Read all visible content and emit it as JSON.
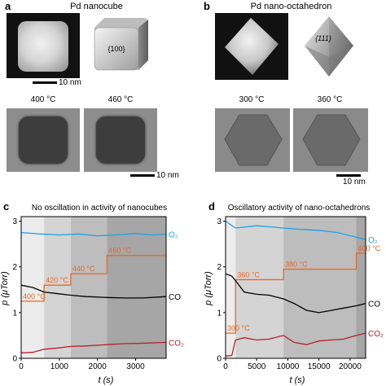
{
  "panel_a": {
    "letter": "a",
    "title": "Pd nanocube",
    "facet_label": "{100}",
    "scale_top": "10 nm",
    "temp1": "400 °C",
    "temp2": "460 °C",
    "scale_bottom": "10 nm"
  },
  "panel_b": {
    "letter": "b",
    "title": "Pd nano-octahedron",
    "facet_label": "{111}",
    "temp1": "300 °C",
    "temp2": "360 °C",
    "scale_bottom": "10 nm"
  },
  "chart_data": [
    {
      "type": "line",
      "panel": "c",
      "title": "No oscillation in activity of nanocubes",
      "xlabel": "t (s)",
      "ylabel": "p (μTorr)",
      "xlim": [
        0,
        3800
      ],
      "ylim": [
        0,
        3.1
      ],
      "xticks": [
        0,
        1000,
        2000,
        3000
      ],
      "yticks": [
        0,
        1,
        2,
        3
      ],
      "shaded_regions": [
        {
          "x": [
            0,
            600
          ],
          "shade": "#ececec"
        },
        {
          "x": [
            600,
            1300
          ],
          "shade": "#d4d4d4"
        },
        {
          "x": [
            1300,
            2250
          ],
          "shade": "#bdbdbd"
        },
        {
          "x": [
            2250,
            3800
          ],
          "shade": "#a6a6a6"
        }
      ],
      "temperature_steps": [
        {
          "label": "400 °C",
          "x": [
            0,
            600
          ],
          "y": 1.25
        },
        {
          "label": "420 °C",
          "x": [
            600,
            1300
          ],
          "y": 1.6
        },
        {
          "label": "440 °C",
          "x": [
            1300,
            2250
          ],
          "y": 1.85
        },
        {
          "label": "460 °C",
          "x": [
            2250,
            3800
          ],
          "y": 2.25
        }
      ],
      "series": [
        {
          "name": "O₂",
          "color": "#1aa3e8",
          "x": [
            0,
            500,
            1000,
            1500,
            2000,
            2500,
            3000,
            3500,
            3800
          ],
          "values": [
            2.75,
            2.72,
            2.7,
            2.72,
            2.68,
            2.7,
            2.73,
            2.7,
            2.72
          ]
        },
        {
          "name": "CO",
          "color": "#000000",
          "x": [
            0,
            300,
            600,
            900,
            1300,
            1700,
            2250,
            2700,
            3200,
            3800
          ],
          "values": [
            1.6,
            1.55,
            1.45,
            1.42,
            1.38,
            1.35,
            1.33,
            1.32,
            1.32,
            1.35
          ]
        },
        {
          "name": "CO₂",
          "color": "#b5202e",
          "x": [
            0,
            300,
            600,
            900,
            1300,
            1700,
            2250,
            2700,
            3200,
            3800
          ],
          "values": [
            0.12,
            0.13,
            0.2,
            0.22,
            0.26,
            0.27,
            0.3,
            0.32,
            0.33,
            0.35
          ]
        }
      ]
    },
    {
      "type": "line",
      "panel": "d",
      "title": "Oscillatory activity of nano-octahedrons",
      "xlabel": "t (s)",
      "ylabel": "p (μTorr)",
      "xlim": [
        0,
        22500
      ],
      "ylim": [
        0,
        3.1
      ],
      "xticks": [
        0,
        5000,
        10000,
        15000,
        20000
      ],
      "yticks": [
        0,
        1,
        2,
        3
      ],
      "shaded_regions": [
        {
          "x": [
            0,
            1600
          ],
          "shade": "#ececec"
        },
        {
          "x": [
            1600,
            9300
          ],
          "shade": "#d4d4d4"
        },
        {
          "x": [
            9300,
            21000
          ],
          "shade": "#bdbdbd"
        },
        {
          "x": [
            21000,
            22500
          ],
          "shade": "#a6a6a6"
        }
      ],
      "temperature_steps": [
        {
          "label": "300 °C",
          "x": [
            0,
            1600
          ],
          "y": 0.55
        },
        {
          "label": "360 °C",
          "x": [
            1600,
            9300
          ],
          "y": 1.72
        },
        {
          "label": "380 °C",
          "x": [
            9300,
            21000
          ],
          "y": 1.95
        },
        {
          "label": "400 °C",
          "x": [
            21000,
            22500
          ],
          "y": 2.3
        }
      ],
      "series": [
        {
          "name": "O₂",
          "color": "#1aa3e8",
          "x": [
            0,
            1600,
            5000,
            9300,
            12000,
            15000,
            18000,
            21000,
            22500
          ],
          "values": [
            3.0,
            2.85,
            2.9,
            2.85,
            2.82,
            2.8,
            2.75,
            2.65,
            2.6
          ]
        },
        {
          "name": "CO",
          "color": "#000000",
          "x": [
            0,
            1000,
            1600,
            3000,
            5000,
            7000,
            9300,
            11000,
            13000,
            15000,
            17000,
            19000,
            21000,
            22500
          ],
          "values": [
            1.85,
            1.8,
            1.7,
            1.45,
            1.4,
            1.38,
            1.3,
            1.2,
            1.05,
            1.0,
            1.05,
            1.1,
            1.15,
            1.2
          ]
        },
        {
          "name": "CO₂",
          "color": "#b5202e",
          "x": [
            0,
            1000,
            1600,
            3000,
            5000,
            7000,
            9300,
            11000,
            13000,
            15000,
            17000,
            19000,
            21000,
            22500
          ],
          "values": [
            0.05,
            0.06,
            0.4,
            0.45,
            0.4,
            0.42,
            0.5,
            0.35,
            0.3,
            0.38,
            0.4,
            0.42,
            0.5,
            0.55
          ]
        }
      ]
    }
  ]
}
